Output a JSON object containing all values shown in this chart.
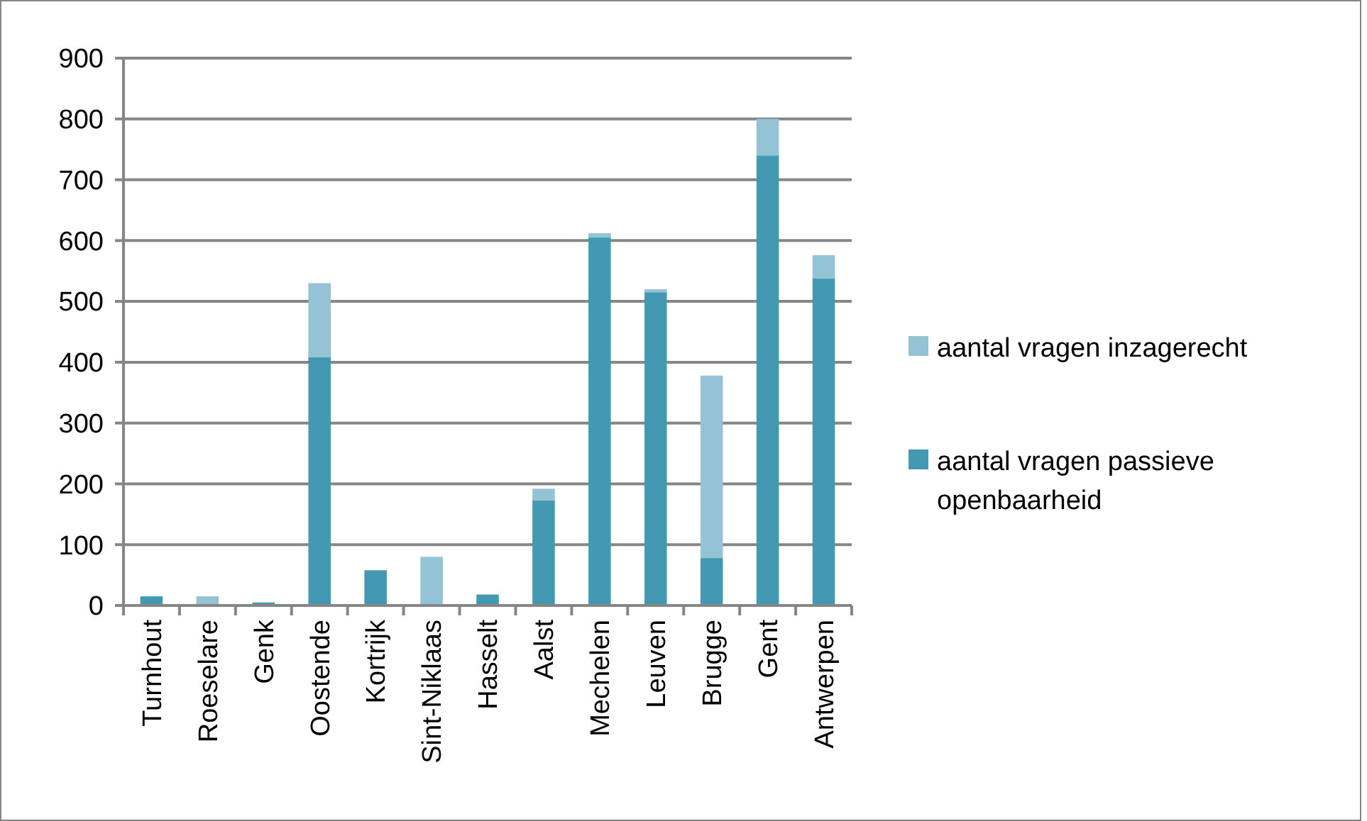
{
  "chart_data": {
    "type": "bar",
    "stacked": true,
    "categories": [
      "Turnhout",
      "Roeselare",
      "Genk",
      "Oostende",
      "Kortrijk",
      "Sint-Niklaas",
      "Hasselt",
      "Aalst",
      "Mechelen",
      "Leuven",
      "Brugge",
      "Gent",
      "Antwerpen"
    ],
    "series": [
      {
        "name": "aantal vragen passieve openbaarheid",
        "color": "#4399b1",
        "values": [
          15,
          0,
          5,
          408,
          58,
          0,
          18,
          173,
          605,
          515,
          78,
          740,
          538
        ]
      },
      {
        "name": "aantal vragen inzagerecht",
        "color": "#93c3d5",
        "values": [
          0,
          15,
          0,
          122,
          0,
          80,
          0,
          19,
          7,
          5,
          300,
          60,
          38
        ]
      }
    ],
    "ylim": [
      0,
      900
    ],
    "yticks": [
      0,
      100,
      200,
      300,
      400,
      500,
      600,
      700,
      800,
      900
    ],
    "grid": "y",
    "legend": "right"
  }
}
